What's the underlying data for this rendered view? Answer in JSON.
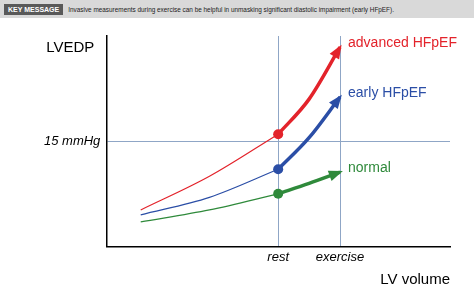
{
  "chart_data": {
    "type": "line",
    "title": "KEY MESSAGE",
    "subtitle": "Invasive measurements during exercise can be helpful in unmasking significant diastolic impairment (early HFpEF).",
    "x_label": "LV volume",
    "y_label": "LVEDP",
    "x": [
      1,
      3,
      5,
      5.9,
      6.8
    ],
    "series": [
      {
        "name": "advanced HFpEF",
        "color": "#e3232b",
        "values": [
          5.2,
          10,
          16,
          21,
          28.4
        ]
      },
      {
        "name": "early HFpEF",
        "color": "#2b4ea6",
        "values": [
          4.5,
          7,
          11,
          15.5,
          21.3
        ]
      },
      {
        "name": "normal",
        "color": "#2f8a3b",
        "values": [
          3.5,
          5.2,
          7.5,
          9,
          10.6
        ]
      }
    ],
    "xlim": [
      0,
      10
    ],
    "ylim": [
      0,
      30
    ],
    "xticks": [
      {
        "value": 5,
        "label": "rest"
      },
      {
        "value": 6.8,
        "label": "exercise"
      }
    ],
    "yticks": [
      {
        "value": 15,
        "label": "15 mmHg"
      }
    ],
    "grid": true
  }
}
